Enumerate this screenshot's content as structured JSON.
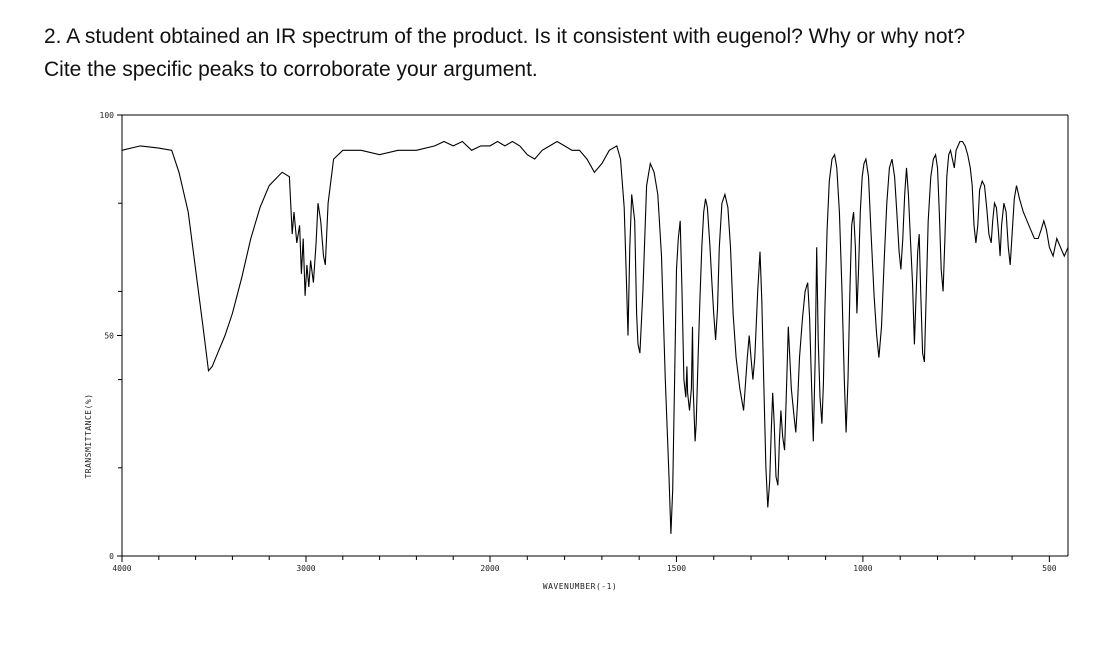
{
  "question": {
    "line1": "2. A student obtained an IR spectrum of the product.  Is it consistent with eugenol? Why or why not?",
    "line2": "Cite the specific peaks to corroborate your argument."
  },
  "chart_data": {
    "type": "line",
    "xlabel": "WAVENUMBER(-1)",
    "ylabel": "TRANSMITTANCE(%)",
    "x_ticks": [
      4000,
      3000,
      2000,
      1500,
      1000,
      500
    ],
    "y_ticks": [
      0,
      50,
      100
    ],
    "xlim": [
      4000,
      450
    ],
    "ylim": [
      0,
      100
    ],
    "x_scale": "piecewise-linear (2000 cm-1 break)",
    "grid": false,
    "color": "#000000",
    "series": [
      {
        "points": [
          [
            4000,
            92
          ],
          [
            3900,
            93
          ],
          [
            3800,
            92.5
          ],
          [
            3730,
            92
          ],
          [
            3690,
            87
          ],
          [
            3640,
            78
          ],
          [
            3600,
            65
          ],
          [
            3560,
            52
          ],
          [
            3530,
            42
          ],
          [
            3510,
            43
          ],
          [
            3480,
            46
          ],
          [
            3440,
            50
          ],
          [
            3400,
            55
          ],
          [
            3350,
            63
          ],
          [
            3300,
            72
          ],
          [
            3250,
            79
          ],
          [
            3200,
            84
          ],
          [
            3130,
            87
          ],
          [
            3090,
            86
          ],
          [
            3075,
            73
          ],
          [
            3065,
            78
          ],
          [
            3050,
            71
          ],
          [
            3035,
            75
          ],
          [
            3025,
            64
          ],
          [
            3015,
            72
          ],
          [
            3005,
            59
          ],
          [
            2995,
            66
          ],
          [
            2985,
            61
          ],
          [
            2975,
            67
          ],
          [
            2960,
            62
          ],
          [
            2945,
            71
          ],
          [
            2935,
            80
          ],
          [
            2920,
            76
          ],
          [
            2905,
            68
          ],
          [
            2895,
            66
          ],
          [
            2880,
            80
          ],
          [
            2850,
            90
          ],
          [
            2800,
            92
          ],
          [
            2700,
            92
          ],
          [
            2600,
            91
          ],
          [
            2500,
            92
          ],
          [
            2400,
            92
          ],
          [
            2300,
            93
          ],
          [
            2250,
            94
          ],
          [
            2200,
            93
          ],
          [
            2150,
            94
          ],
          [
            2100,
            92
          ],
          [
            2050,
            93
          ],
          [
            2000,
            93
          ],
          [
            1980,
            94
          ],
          [
            1960,
            93
          ],
          [
            1940,
            94
          ],
          [
            1920,
            93
          ],
          [
            1900,
            91
          ],
          [
            1880,
            90
          ],
          [
            1860,
            92
          ],
          [
            1840,
            93
          ],
          [
            1820,
            94
          ],
          [
            1800,
            93
          ],
          [
            1780,
            92
          ],
          [
            1760,
            92
          ],
          [
            1740,
            90
          ],
          [
            1720,
            87
          ],
          [
            1700,
            89
          ],
          [
            1680,
            92
          ],
          [
            1660,
            93
          ],
          [
            1650,
            90
          ],
          [
            1640,
            79
          ],
          [
            1635,
            65
          ],
          [
            1630,
            50
          ],
          [
            1625,
            70
          ],
          [
            1620,
            82
          ],
          [
            1612,
            76
          ],
          [
            1607,
            55
          ],
          [
            1603,
            48
          ],
          [
            1598,
            46
          ],
          [
            1590,
            60
          ],
          [
            1580,
            84
          ],
          [
            1570,
            89
          ],
          [
            1560,
            87
          ],
          [
            1550,
            82
          ],
          [
            1540,
            68
          ],
          [
            1530,
            40
          ],
          [
            1520,
            18
          ],
          [
            1515,
            5
          ],
          [
            1510,
            15
          ],
          [
            1505,
            40
          ],
          [
            1500,
            65
          ],
          [
            1495,
            72
          ],
          [
            1490,
            76
          ],
          [
            1485,
            60
          ],
          [
            1480,
            40
          ],
          [
            1475,
            36
          ],
          [
            1472,
            43
          ],
          [
            1470,
            37
          ],
          [
            1465,
            33
          ],
          [
            1460,
            38
          ],
          [
            1457,
            52
          ],
          [
            1455,
            38
          ],
          [
            1450,
            26
          ],
          [
            1447,
            30
          ],
          [
            1442,
            45
          ],
          [
            1437,
            58
          ],
          [
            1432,
            70
          ],
          [
            1427,
            78
          ],
          [
            1422,
            81
          ],
          [
            1417,
            79
          ],
          [
            1410,
            70
          ],
          [
            1405,
            62
          ],
          [
            1400,
            55
          ],
          [
            1395,
            49
          ],
          [
            1390,
            56
          ],
          [
            1385,
            70
          ],
          [
            1378,
            80
          ],
          [
            1370,
            82
          ],
          [
            1362,
            79
          ],
          [
            1355,
            70
          ],
          [
            1348,
            55
          ],
          [
            1340,
            45
          ],
          [
            1330,
            38
          ],
          [
            1320,
            33
          ],
          [
            1310,
            45
          ],
          [
            1305,
            50
          ],
          [
            1300,
            45
          ],
          [
            1295,
            40
          ],
          [
            1290,
            45
          ],
          [
            1282,
            60
          ],
          [
            1276,
            69
          ],
          [
            1271,
            58
          ],
          [
            1266,
            40
          ],
          [
            1260,
            20
          ],
          [
            1255,
            11
          ],
          [
            1250,
            17
          ],
          [
            1246,
            28
          ],
          [
            1242,
            37
          ],
          [
            1238,
            30
          ],
          [
            1233,
            18
          ],
          [
            1228,
            16
          ],
          [
            1224,
            26
          ],
          [
            1220,
            33
          ],
          [
            1215,
            27
          ],
          [
            1210,
            24
          ],
          [
            1205,
            38
          ],
          [
            1200,
            52
          ],
          [
            1192,
            38
          ],
          [
            1185,
            32
          ],
          [
            1180,
            28
          ],
          [
            1175,
            35
          ],
          [
            1170,
            45
          ],
          [
            1162,
            54
          ],
          [
            1155,
            60
          ],
          [
            1148,
            62
          ],
          [
            1143,
            54
          ],
          [
            1138,
            40
          ],
          [
            1133,
            26
          ],
          [
            1128,
            45
          ],
          [
            1124,
            70
          ],
          [
            1120,
            49
          ],
          [
            1115,
            36
          ],
          [
            1110,
            30
          ],
          [
            1106,
            39
          ],
          [
            1102,
            56
          ],
          [
            1096,
            74
          ],
          [
            1090,
            85
          ],
          [
            1083,
            90
          ],
          [
            1076,
            91
          ],
          [
            1070,
            88
          ],
          [
            1063,
            78
          ],
          [
            1056,
            60
          ],
          [
            1050,
            40
          ],
          [
            1045,
            28
          ],
          [
            1040,
            40
          ],
          [
            1035,
            60
          ],
          [
            1030,
            75
          ],
          [
            1025,
            78
          ],
          [
            1020,
            70
          ],
          [
            1016,
            55
          ],
          [
            1012,
            64
          ],
          [
            1007,
            78
          ],
          [
            1002,
            86
          ],
          [
            997,
            89
          ],
          [
            992,
            90
          ],
          [
            985,
            86
          ],
          [
            978,
            73
          ],
          [
            970,
            59
          ],
          [
            963,
            50
          ],
          [
            957,
            45
          ],
          [
            950,
            52
          ],
          [
            943,
            67
          ],
          [
            936,
            80
          ],
          [
            929,
            88
          ],
          [
            922,
            90
          ],
          [
            915,
            86
          ],
          [
            909,
            78
          ],
          [
            903,
            69
          ],
          [
            898,
            65
          ],
          [
            893,
            72
          ],
          [
            888,
            82
          ],
          [
            883,
            88
          ],
          [
            878,
            82
          ],
          [
            872,
            71
          ],
          [
            867,
            62
          ],
          [
            862,
            48
          ],
          [
            858,
            58
          ],
          [
            853,
            69
          ],
          [
            849,
            73
          ],
          [
            845,
            60
          ],
          [
            840,
            46
          ],
          [
            835,
            44
          ],
          [
            830,
            60
          ],
          [
            825,
            76
          ],
          [
            818,
            86
          ],
          [
            811,
            90
          ],
          [
            805,
            91
          ],
          [
            800,
            88
          ],
          [
            795,
            78
          ],
          [
            790,
            65
          ],
          [
            785,
            60
          ],
          [
            780,
            72
          ],
          [
            775,
            86
          ],
          [
            770,
            91
          ],
          [
            765,
            92
          ],
          [
            760,
            90
          ],
          [
            755,
            88
          ],
          [
            750,
            92
          ],
          [
            745,
            93
          ],
          [
            740,
            94
          ],
          [
            733,
            94
          ],
          [
            726,
            93
          ],
          [
            719,
            91
          ],
          [
            712,
            88
          ],
          [
            707,
            84
          ],
          [
            702,
            75
          ],
          [
            697,
            71
          ],
          [
            692,
            75
          ],
          [
            687,
            83
          ],
          [
            680,
            85
          ],
          [
            674,
            84
          ],
          [
            668,
            79
          ],
          [
            662,
            73
          ],
          [
            656,
            71
          ],
          [
            652,
            76
          ],
          [
            647,
            80
          ],
          [
            642,
            79
          ],
          [
            637,
            74
          ],
          [
            632,
            68
          ],
          [
            628,
            75
          ],
          [
            622,
            80
          ],
          [
            616,
            78
          ],
          [
            610,
            70
          ],
          [
            605,
            66
          ],
          [
            600,
            73
          ],
          [
            594,
            81
          ],
          [
            588,
            84
          ],
          [
            580,
            81
          ],
          [
            570,
            78
          ],
          [
            560,
            76
          ],
          [
            550,
            74
          ],
          [
            540,
            72
          ],
          [
            530,
            72
          ],
          [
            522,
            74
          ],
          [
            515,
            76
          ],
          [
            508,
            74
          ],
          [
            500,
            70
          ],
          [
            490,
            68
          ],
          [
            480,
            72
          ],
          [
            470,
            70
          ],
          [
            460,
            68
          ],
          [
            450,
            70
          ]
        ]
      }
    ]
  }
}
